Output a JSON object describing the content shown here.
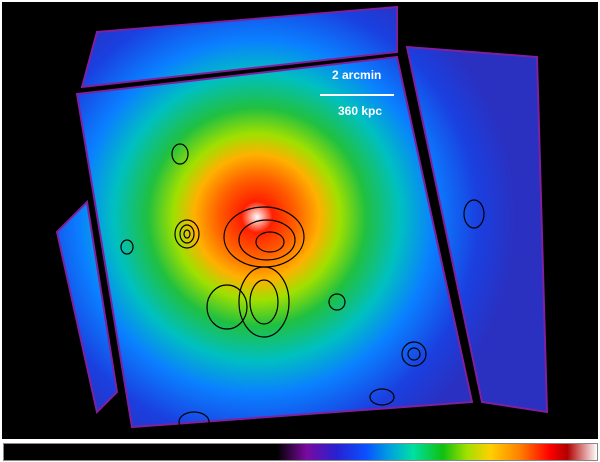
{
  "scale_bar": {
    "angular": "2 arcmin",
    "physical": "360 kpc"
  },
  "colormap": {
    "stops": [
      "#000000",
      "#7a0aa0",
      "#2a20d0",
      "#0a50ff",
      "#00e0a0",
      "#10c010",
      "#ffd000",
      "#ff8000",
      "#ff0000",
      "#b00000",
      "#ffffff"
    ]
  }
}
